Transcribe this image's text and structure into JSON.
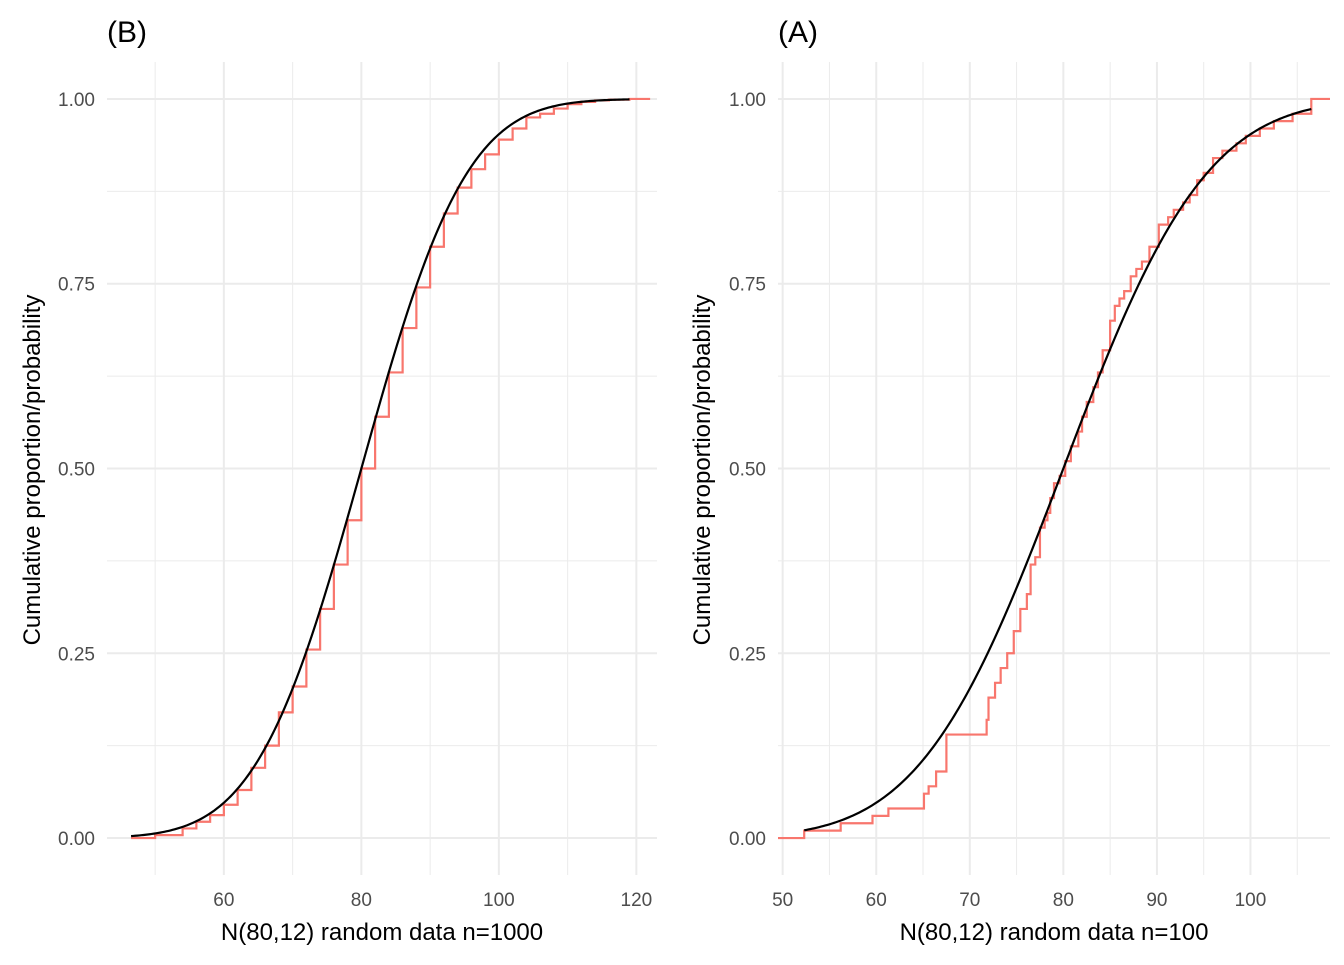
{
  "chart_data": [
    {
      "type": "line",
      "panel_label": "(B)",
      "xlabel": "N(80,12) random data n=1000",
      "ylabel": "Cumulative proportion/probability",
      "xlim": [
        43,
        123
      ],
      "ylim": [
        -0.05,
        1.05
      ],
      "x_ticks": [
        60,
        80,
        100,
        120
      ],
      "y_ticks": [
        0.0,
        0.25,
        0.5,
        0.75,
        1.0
      ],
      "y_tick_labels": [
        "0.00",
        "0.25",
        "0.50",
        "0.75",
        "1.00"
      ],
      "grid": true,
      "normal_mean": 80,
      "normal_sd": 12,
      "series": [
        {
          "kind": "ecdf",
          "color": "#F8766D",
          "x": [
            46.5,
            50,
            54,
            56,
            58,
            60,
            62,
            64,
            66,
            68,
            70,
            72,
            74,
            76,
            78,
            80,
            82,
            84,
            86,
            88,
            90,
            92,
            94,
            96,
            98,
            100,
            102,
            104,
            106,
            108,
            110,
            112,
            114,
            116,
            119,
            122
          ],
          "y": [
            0.0,
            0.004,
            0.013,
            0.022,
            0.031,
            0.045,
            0.065,
            0.095,
            0.125,
            0.17,
            0.205,
            0.255,
            0.31,
            0.37,
            0.43,
            0.5,
            0.57,
            0.63,
            0.69,
            0.745,
            0.8,
            0.845,
            0.88,
            0.905,
            0.925,
            0.945,
            0.96,
            0.975,
            0.98,
            0.987,
            0.993,
            0.996,
            0.998,
            0.999,
            1.0,
            1.0
          ]
        },
        {
          "kind": "normal-cdf",
          "color": "#000000",
          "x_range": [
            46.5,
            119
          ]
        }
      ]
    },
    {
      "type": "line",
      "panel_label": "(A)",
      "xlabel": "N(80,12) random data n=100",
      "ylabel": "Cumulative proportion/probability",
      "xlim": [
        49.5,
        108.5
      ],
      "ylim": [
        -0.05,
        1.05
      ],
      "x_ticks": [
        50,
        60,
        70,
        80,
        90,
        100
      ],
      "y_ticks": [
        0.0,
        0.25,
        0.5,
        0.75,
        1.0
      ],
      "y_tick_labels": [
        "0.00",
        "0.25",
        "0.50",
        "0.75",
        "1.00"
      ],
      "grid": true,
      "normal_mean": 80,
      "normal_sd": 12,
      "series": [
        {
          "kind": "ecdf",
          "color": "#F8766D",
          "x": [
            49.5,
            52.3,
            56.2,
            59.6,
            61.3,
            65.1,
            65.6,
            66.4,
            67.5,
            71.8,
            72.0,
            72.7,
            73.3,
            74.0,
            74.7,
            75.4,
            76.1,
            76.5,
            77.0,
            77.5,
            78.0,
            78.3,
            78.6,
            79.0,
            79.6,
            80.2,
            80.8,
            81.6,
            82.0,
            82.5,
            83.2,
            83.7,
            84.2,
            85.0,
            85.5,
            86.0,
            86.5,
            87.2,
            87.8,
            88.4,
            89.2,
            90.2,
            91.2,
            91.8,
            92.8,
            93.5,
            94.3,
            95.0,
            96.0,
            97.0,
            98.5,
            99.5,
            101,
            102.5,
            104.5,
            106.5,
            108.5
          ],
          "y": [
            0.0,
            0.01,
            0.02,
            0.03,
            0.04,
            0.06,
            0.07,
            0.09,
            0.14,
            0.16,
            0.19,
            0.21,
            0.23,
            0.25,
            0.28,
            0.31,
            0.33,
            0.37,
            0.38,
            0.42,
            0.43,
            0.44,
            0.46,
            0.48,
            0.49,
            0.51,
            0.53,
            0.55,
            0.57,
            0.59,
            0.61,
            0.63,
            0.66,
            0.7,
            0.72,
            0.73,
            0.74,
            0.76,
            0.77,
            0.78,
            0.8,
            0.83,
            0.84,
            0.85,
            0.86,
            0.87,
            0.89,
            0.9,
            0.92,
            0.93,
            0.94,
            0.95,
            0.96,
            0.97,
            0.98,
            1.0,
            1.0
          ]
        },
        {
          "kind": "normal-cdf",
          "color": "#000000",
          "x_range": [
            52.3,
            106.5
          ]
        }
      ]
    }
  ]
}
